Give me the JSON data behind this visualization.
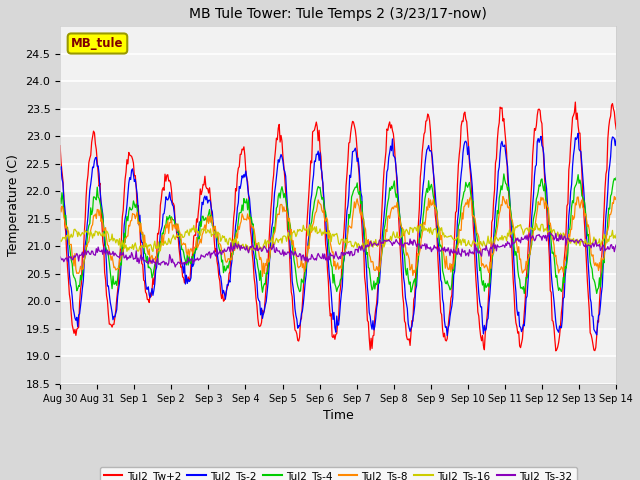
{
  "title": "MB Tule Tower: Tule Temps 2 (3/23/17-now)",
  "xlabel": "Time",
  "ylabel": "Temperature (C)",
  "ylim": [
    18.5,
    25.0
  ],
  "yticks": [
    18.5,
    19.0,
    19.5,
    20.0,
    20.5,
    21.0,
    21.5,
    22.0,
    22.5,
    23.0,
    23.5,
    24.0,
    24.5
  ],
  "fig_bg_color": "#d8d8d8",
  "plot_bg_color": "#f2f2f2",
  "legend_label": "MB_tule",
  "legend_box_facecolor": "#ffff00",
  "legend_box_edgecolor": "#999900",
  "legend_text_color": "#800000",
  "series_colors": [
    "#ff0000",
    "#0000ff",
    "#00cc00",
    "#ff8800",
    "#cccc00",
    "#8800bb"
  ],
  "series_labels": [
    "Tul2_Tw+2",
    "Tul2_Ts-2",
    "Tul2_Ts-4",
    "Tul2_Ts-8",
    "Tul2_Ts-16",
    "Tul2_Ts-32"
  ],
  "x_tick_labels": [
    "Aug 30",
    "Aug 31",
    "Sep 1",
    "Sep 2",
    "Sep 3",
    "Sep 4",
    "Sep 5",
    "Sep 6",
    "Sep 7",
    "Sep 8",
    "Sep 9",
    "Sep 10",
    "Sep 11",
    "Sep 12",
    "Sep 13",
    "Sep 14"
  ],
  "n_points": 600
}
